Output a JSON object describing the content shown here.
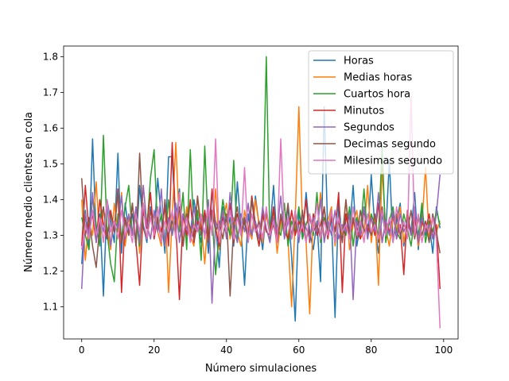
{
  "chart_data": {
    "type": "line",
    "xlabel": "Número simulaciones",
    "ylabel": "Número medio clientes en cola",
    "xlim": [
      -5,
      104
    ],
    "ylim": [
      1.01,
      1.83
    ],
    "xticks": [
      0,
      20,
      40,
      60,
      80,
      100
    ],
    "yticks": [
      1.1,
      1.2,
      1.3,
      1.4,
      1.5,
      1.6,
      1.7,
      1.8
    ],
    "ytick_labels": [
      "1.1",
      "1.2",
      "1.3",
      "1.4",
      "1.5",
      "1.6",
      "1.7",
      "1.8"
    ],
    "xtick_labels": [
      "0",
      "20",
      "40",
      "60",
      "80",
      "100"
    ],
    "legend_position": "top-right",
    "grid": false,
    "series": [
      {
        "name": "Horas",
        "color": "#1f77b4",
        "values": [
          1.22,
          1.37,
          1.26,
          1.57,
          1.3,
          1.36,
          1.13,
          1.4,
          1.34,
          1.28,
          1.53,
          1.25,
          1.39,
          1.31,
          1.36,
          1.27,
          1.44,
          1.33,
          1.28,
          1.38,
          1.3,
          1.46,
          1.35,
          1.25,
          1.52,
          1.52,
          1.32,
          1.43,
          1.27,
          1.36,
          1.3,
          1.4,
          1.34,
          1.28,
          1.37,
          1.25,
          1.42,
          1.33,
          1.21,
          1.38,
          1.3,
          1.35,
          1.27,
          1.45,
          1.32,
          1.16,
          1.36,
          1.29,
          1.41,
          1.33,
          1.26,
          1.37,
          1.31,
          1.44,
          1.28,
          1.35,
          1.3,
          1.38,
          1.24,
          1.06,
          1.37,
          1.29,
          1.42,
          1.31,
          1.26,
          1.34,
          1.17,
          1.66,
          1.3,
          1.35,
          1.07,
          1.4,
          1.28,
          1.36,
          1.31,
          1.44,
          1.27,
          1.33,
          1.38,
          1.29,
          1.47,
          1.32,
          1.25,
          1.36,
          1.3,
          1.51,
          1.28,
          1.34,
          1.39,
          1.27,
          1.35,
          1.31,
          1.42,
          1.26,
          1.37,
          1.3,
          1.33,
          1.25,
          1.38,
          1.32
        ]
      },
      {
        "name": "Medias horas",
        "color": "#ff7f0e",
        "values": [
          1.4,
          1.23,
          1.34,
          1.3,
          1.45,
          1.28,
          1.37,
          1.32,
          1.26,
          1.39,
          1.31,
          1.42,
          1.27,
          1.35,
          1.3,
          1.38,
          1.25,
          1.44,
          1.33,
          1.29,
          1.36,
          1.31,
          1.27,
          1.4,
          1.14,
          1.35,
          1.56,
          1.32,
          1.28,
          1.38,
          1.3,
          1.27,
          1.41,
          1.33,
          1.22,
          1.36,
          1.31,
          1.43,
          1.26,
          1.34,
          1.39,
          1.29,
          1.35,
          1.31,
          1.27,
          1.37,
          1.32,
          1.29,
          1.4,
          1.33,
          1.28,
          1.36,
          1.3,
          1.38,
          1.25,
          1.34,
          1.31,
          1.29,
          1.1,
          1.35,
          1.66,
          1.33,
          1.28,
          1.08,
          1.36,
          1.31,
          1.42,
          1.29,
          1.34,
          1.38,
          1.27,
          1.35,
          1.3,
          1.4,
          1.26,
          1.33,
          1.37,
          1.29,
          1.31,
          1.44,
          1.28,
          1.36,
          1.16,
          1.49,
          1.32,
          1.27,
          1.35,
          1.31,
          1.38,
          1.28,
          1.34,
          1.3,
          1.36,
          1.27,
          1.33,
          1.49,
          1.29,
          1.35,
          1.31,
          1.34
        ]
      },
      {
        "name": "Cuartos hora",
        "color": "#2ca02c",
        "values": [
          1.35,
          1.3,
          1.26,
          1.41,
          1.33,
          1.27,
          1.58,
          1.31,
          1.22,
          1.17,
          1.36,
          1.29,
          1.38,
          1.44,
          1.3,
          1.35,
          1.27,
          1.39,
          1.32,
          1.46,
          1.54,
          1.31,
          1.36,
          1.27,
          1.4,
          1.3,
          1.35,
          1.31,
          1.42,
          1.26,
          1.54,
          1.3,
          1.37,
          1.23,
          1.55,
          1.3,
          1.36,
          1.19,
          1.31,
          1.4,
          1.34,
          1.3,
          1.51,
          1.28,
          1.36,
          1.33,
          1.29,
          1.41,
          1.32,
          1.27,
          1.35,
          1.8,
          1.28,
          1.37,
          1.32,
          1.3,
          1.39,
          1.27,
          1.34,
          1.31,
          1.38,
          1.29,
          1.33,
          1.36,
          1.3,
          1.42,
          1.28,
          1.35,
          1.31,
          1.37,
          1.29,
          1.34,
          1.32,
          1.3,
          1.38,
          1.27,
          1.35,
          1.31,
          1.43,
          1.29,
          1.36,
          1.33,
          1.3,
          1.55,
          1.28,
          1.34,
          1.38,
          1.31,
          1.29,
          1.36,
          1.32,
          1.27,
          1.35,
          1.3,
          1.39,
          1.28,
          1.34,
          1.31,
          1.37,
          1.33
        ]
      },
      {
        "name": "Minutos",
        "color": "#d62728",
        "values": [
          1.27,
          1.44,
          1.31,
          1.36,
          1.28,
          1.4,
          1.33,
          1.29,
          1.37,
          1.31,
          1.43,
          1.14,
          1.35,
          1.3,
          1.39,
          1.28,
          1.16,
          1.37,
          1.32,
          1.42,
          1.29,
          1.35,
          1.31,
          1.38,
          1.27,
          1.56,
          1.33,
          1.12,
          1.36,
          1.3,
          1.4,
          1.28,
          1.34,
          1.31,
          1.37,
          1.29,
          1.43,
          1.32,
          1.27,
          1.35,
          1.3,
          1.39,
          1.28,
          1.36,
          1.31,
          1.34,
          1.29,
          1.41,
          1.33,
          1.27,
          1.36,
          1.31,
          1.3,
          1.38,
          1.28,
          1.35,
          1.32,
          1.29,
          1.37,
          1.3,
          1.34,
          1.31,
          1.4,
          1.28,
          1.36,
          1.3,
          1.33,
          1.38,
          1.29,
          1.35,
          1.31,
          1.42,
          1.14,
          1.36,
          1.3,
          1.34,
          1.32,
          1.29,
          1.37,
          1.31,
          1.35,
          1.3,
          1.39,
          1.28,
          1.34,
          1.31,
          1.36,
          1.29,
          1.33,
          1.19,
          1.37,
          1.3,
          1.35,
          1.28,
          1.34,
          1.31,
          1.36,
          1.29,
          1.33,
          1.15
        ]
      },
      {
        "name": "Segundos",
        "color": "#9467bd",
        "values": [
          1.15,
          1.36,
          1.3,
          1.42,
          1.28,
          1.35,
          1.31,
          1.39,
          1.27,
          1.34,
          1.32,
          1.41,
          1.29,
          1.36,
          1.3,
          1.38,
          1.28,
          1.44,
          1.33,
          1.29,
          1.37,
          1.31,
          1.43,
          1.27,
          1.35,
          1.3,
          1.39,
          1.28,
          1.36,
          1.32,
          1.29,
          1.38,
          1.31,
          1.35,
          1.3,
          1.4,
          1.11,
          1.34,
          1.31,
          1.37,
          1.29,
          1.42,
          1.32,
          1.28,
          1.36,
          1.31,
          1.39,
          1.3,
          1.34,
          1.29,
          1.38,
          1.32,
          1.28,
          1.35,
          1.31,
          1.41,
          1.29,
          1.34,
          1.3,
          1.37,
          1.28,
          1.36,
          1.32,
          1.29,
          1.35,
          1.31,
          1.4,
          1.28,
          1.34,
          1.3,
          1.37,
          1.29,
          1.33,
          1.31,
          1.36,
          1.12,
          1.34,
          1.3,
          1.38,
          1.29,
          1.35,
          1.31,
          1.42,
          1.28,
          1.34,
          1.3,
          1.37,
          1.29,
          1.36,
          1.31,
          1.34,
          1.3,
          1.38,
          1.28,
          1.35,
          1.31,
          1.33,
          1.29,
          1.36,
          1.47
        ]
      },
      {
        "name": "Decimas segundo",
        "color": "#8c564b",
        "values": [
          1.46,
          1.3,
          1.35,
          1.27,
          1.21,
          1.33,
          1.38,
          1.29,
          1.36,
          1.31,
          1.42,
          1.28,
          1.34,
          1.3,
          1.39,
          1.27,
          1.53,
          1.32,
          1.29,
          1.37,
          1.31,
          1.35,
          1.28,
          1.4,
          1.3,
          1.34,
          1.31,
          1.38,
          1.27,
          1.36,
          1.32,
          1.29,
          1.41,
          1.3,
          1.35,
          1.28,
          1.37,
          1.31,
          1.34,
          1.29,
          1.36,
          1.13,
          1.33,
          1.38,
          1.3,
          1.35,
          1.28,
          1.4,
          1.31,
          1.34,
          1.29,
          1.37,
          1.3,
          1.33,
          1.28,
          1.36,
          1.31,
          1.39,
          1.29,
          1.34,
          1.3,
          1.37,
          1.28,
          1.35,
          1.31,
          1.33,
          1.29,
          1.38,
          1.3,
          1.36,
          1.31,
          1.34,
          1.28,
          1.4,
          1.3,
          1.35,
          1.29,
          1.37,
          1.31,
          1.33,
          1.3,
          1.36,
          1.28,
          1.38,
          1.31,
          1.34,
          1.29,
          1.36,
          1.3,
          1.33,
          1.31,
          1.37,
          1.29,
          1.35,
          1.3,
          1.34,
          1.28,
          1.36,
          1.31,
          1.25
        ]
      },
      {
        "name": "Milesimas segundo",
        "color": "#e377c2",
        "values": [
          1.26,
          1.33,
          1.29,
          1.37,
          1.3,
          1.35,
          1.28,
          1.4,
          1.31,
          1.34,
          1.29,
          1.37,
          1.3,
          1.33,
          1.28,
          1.36,
          1.31,
          1.39,
          1.29,
          1.35,
          1.3,
          1.38,
          1.28,
          1.34,
          1.31,
          1.37,
          1.29,
          1.42,
          1.3,
          1.35,
          1.28,
          1.33,
          1.31,
          1.36,
          1.29,
          1.38,
          1.3,
          1.57,
          1.28,
          1.34,
          1.31,
          1.37,
          1.29,
          1.35,
          1.3,
          1.49,
          1.28,
          1.36,
          1.31,
          1.33,
          1.29,
          1.38,
          1.3,
          1.34,
          1.28,
          1.57,
          1.31,
          1.35,
          1.29,
          1.37,
          1.3,
          1.33,
          1.28,
          1.36,
          1.31,
          1.39,
          1.29,
          1.34,
          1.3,
          1.37,
          1.28,
          1.35,
          1.31,
          1.33,
          1.29,
          1.38,
          1.3,
          1.34,
          1.28,
          1.36,
          1.31,
          1.33,
          1.29,
          1.37,
          1.3,
          1.35,
          1.28,
          1.38,
          1.31,
          1.34,
          1.29,
          1.69,
          1.3,
          1.36,
          1.28,
          1.33,
          1.31,
          1.35,
          1.29,
          1.04
        ]
      }
    ]
  }
}
